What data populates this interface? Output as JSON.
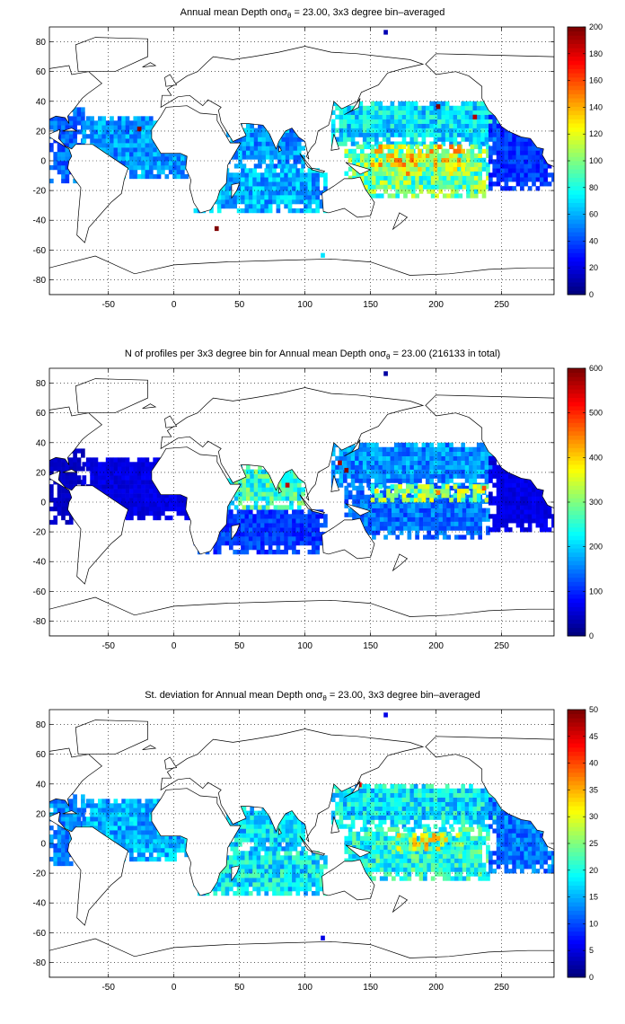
{
  "chart_data": [
    {
      "type": "heatmap",
      "title_prefix": "Annual mean Depth on",
      "title_symbol": "σ",
      "title_subscript": "θ",
      "title_suffix": " = 23.00, 3x3 degree bin–averaged",
      "xlim": [
        -95,
        290
      ],
      "ylim": [
        -90,
        90
      ],
      "xticks": [
        -50,
        0,
        50,
        100,
        150,
        200,
        250
      ],
      "yticks": [
        80,
        60,
        40,
        20,
        0,
        -20,
        -40,
        -60,
        -80
      ],
      "grid": true,
      "colorbar": {
        "min": 0,
        "max": 200,
        "ticks": [
          0,
          20,
          40,
          60,
          80,
          100,
          120,
          140,
          160,
          180,
          200
        ]
      },
      "regions": [
        {
          "lon": [
            -95,
            -70
          ],
          "lat": [
            -15,
            35
          ],
          "value": 45
        },
        {
          "lon": [
            -70,
            15
          ],
          "lat": [
            -12,
            30
          ],
          "value": 55
        },
        {
          "lon": [
            15,
            115
          ],
          "lat": [
            -35,
            -5
          ],
          "value": 60
        },
        {
          "lon": [
            40,
            100
          ],
          "lat": [
            -5,
            25
          ],
          "value": 55
        },
        {
          "lon": [
            120,
            250
          ],
          "lat": [
            10,
            40
          ],
          "value": 70
        },
        {
          "lon": [
            130,
            240
          ],
          "lat": [
            -25,
            10
          ],
          "value": 95
        },
        {
          "lon": [
            150,
            220
          ],
          "lat": [
            -10,
            10
          ],
          "value": 120
        },
        {
          "lon": [
            240,
            290
          ],
          "lat": [
            -20,
            30
          ],
          "value": 35
        }
      ],
      "outliers": [
        {
          "lon": -28,
          "lat": 20,
          "value": 200
        },
        {
          "lon": 200,
          "lat": 35,
          "value": 200
        },
        {
          "lon": 228,
          "lat": 28,
          "value": 190
        },
        {
          "lon": 31,
          "lat": -47,
          "value": 200
        },
        {
          "lon": 160,
          "lat": 85,
          "value": 10
        },
        {
          "lon": 112,
          "lat": -65,
          "value": 70
        }
      ]
    },
    {
      "type": "heatmap",
      "title_prefix": "N of profiles per 3x3 degree bin for Annual mean Depth on",
      "title_symbol": "σ",
      "title_subscript": "θ",
      "title_suffix": " = 23.00 (216133 in total)",
      "xlim": [
        -95,
        290
      ],
      "ylim": [
        -90,
        90
      ],
      "xticks": [
        -50,
        0,
        50,
        100,
        150,
        200,
        250
      ],
      "yticks": [
        80,
        60,
        40,
        20,
        0,
        -20,
        -40,
        -60,
        -80
      ],
      "grid": true,
      "colorbar": {
        "min": 0,
        "max": 600,
        "ticks": [
          0,
          100,
          200,
          300,
          400,
          500,
          600
        ]
      },
      "regions": [
        {
          "lon": [
            -95,
            -70
          ],
          "lat": [
            -15,
            35
          ],
          "value": 40
        },
        {
          "lon": [
            -70,
            15
          ],
          "lat": [
            -12,
            30
          ],
          "value": 60
        },
        {
          "lon": [
            15,
            115
          ],
          "lat": [
            -35,
            -5
          ],
          "value": 110
        },
        {
          "lon": [
            40,
            100
          ],
          "lat": [
            -5,
            25
          ],
          "value": 250
        },
        {
          "lon": [
            120,
            250
          ],
          "lat": [
            10,
            40
          ],
          "value": 160
        },
        {
          "lon": [
            130,
            240
          ],
          "lat": [
            -25,
            10
          ],
          "value": 140
        },
        {
          "lon": [
            150,
            240
          ],
          "lat": [
            0,
            10
          ],
          "value": 300
        },
        {
          "lon": [
            240,
            290
          ],
          "lat": [
            -20,
            30
          ],
          "value": 60
        }
      ],
      "outliers": [
        {
          "lon": 130,
          "lat": 20,
          "value": 600
        },
        {
          "lon": 125,
          "lat": 25,
          "value": 580
        },
        {
          "lon": 85,
          "lat": 10,
          "value": 560
        },
        {
          "lon": 200,
          "lat": 5,
          "value": 450
        },
        {
          "lon": 235,
          "lat": 8,
          "value": 480
        },
        {
          "lon": 160,
          "lat": 85,
          "value": 20
        }
      ]
    },
    {
      "type": "heatmap",
      "title_prefix": "St. deviation for Annual mean Depth on",
      "title_symbol": "σ",
      "title_subscript": "θ",
      "title_suffix": " = 23.00, 3x3 degree bin–averaged",
      "xlim": [
        -95,
        290
      ],
      "ylim": [
        -90,
        90
      ],
      "xticks": [
        -50,
        0,
        50,
        100,
        150,
        200,
        250
      ],
      "yticks": [
        80,
        60,
        40,
        20,
        0,
        -20,
        -40,
        -60,
        -80
      ],
      "grid": true,
      "colorbar": {
        "min": 0,
        "max": 50,
        "ticks": [
          0,
          5,
          10,
          15,
          20,
          25,
          30,
          35,
          40,
          45,
          50
        ]
      },
      "regions": [
        {
          "lon": [
            -95,
            -70
          ],
          "lat": [
            -15,
            35
          ],
          "value": 13
        },
        {
          "lon": [
            -70,
            15
          ],
          "lat": [
            -12,
            30
          ],
          "value": 15
        },
        {
          "lon": [
            15,
            115
          ],
          "lat": [
            -35,
            -5
          ],
          "value": 18
        },
        {
          "lon": [
            40,
            100
          ],
          "lat": [
            -5,
            25
          ],
          "value": 17
        },
        {
          "lon": [
            120,
            250
          ],
          "lat": [
            10,
            40
          ],
          "value": 18
        },
        {
          "lon": [
            130,
            240
          ],
          "lat": [
            -25,
            10
          ],
          "value": 20
        },
        {
          "lon": [
            170,
            220
          ],
          "lat": [
            -5,
            5
          ],
          "value": 28
        },
        {
          "lon": [
            240,
            290
          ],
          "lat": [
            -20,
            30
          ],
          "value": 12
        }
      ],
      "outliers": [
        {
          "lon": 140,
          "lat": 38,
          "value": 45
        },
        {
          "lon": 200,
          "lat": 2,
          "value": 35
        },
        {
          "lon": 160,
          "lat": 85,
          "value": 5
        },
        {
          "lon": 112,
          "lat": -65,
          "value": 5
        }
      ]
    }
  ]
}
